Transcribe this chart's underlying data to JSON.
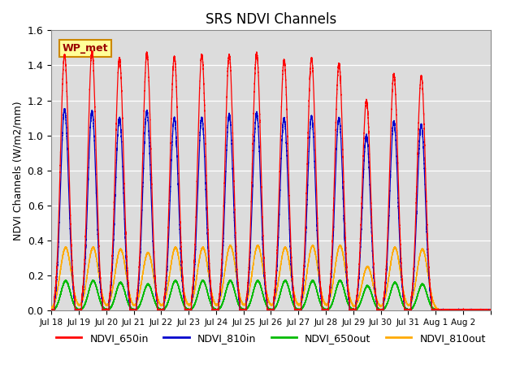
{
  "title": "SRS NDVI Channels",
  "ylabel": "NDVI Channels (W/m2/mm)",
  "xlabel": "",
  "ylim": [
    0.0,
    1.6
  ],
  "background_color": "#dcdcdc",
  "legend_entries": [
    "NDVI_650in",
    "NDVI_810in",
    "NDVI_650out",
    "NDVI_810out"
  ],
  "legend_colors": [
    "#ff0000",
    "#0000cc",
    "#00bb00",
    "#ffaa00"
  ],
  "annotation_text": "WP_met",
  "annotation_bg": "#ffff99",
  "annotation_border": "#cc8800",
  "x_tick_labels": [
    "Jul 18",
    "Jul 19",
    "Jul 20",
    "Jul 21",
    "Jul 22",
    "Jul 23",
    "Jul 24",
    "Jul 25",
    "Jul 26",
    "Jul 27",
    "Jul 28",
    "Jul 29",
    "Jul 30",
    "Jul 31",
    "Aug 1",
    "Aug 2"
  ],
  "num_days": 16,
  "peak_650in": [
    1.46,
    1.48,
    1.44,
    1.47,
    1.45,
    1.46,
    1.46,
    1.47,
    1.43,
    1.44,
    1.41,
    1.2,
    1.35,
    1.34,
    0.0,
    0.0
  ],
  "peak_810in": [
    1.15,
    1.14,
    1.1,
    1.14,
    1.1,
    1.1,
    1.12,
    1.13,
    1.1,
    1.11,
    1.1,
    1.0,
    1.08,
    1.06,
    0.0,
    0.0
  ],
  "peak_650out": [
    0.17,
    0.17,
    0.16,
    0.15,
    0.17,
    0.17,
    0.17,
    0.17,
    0.17,
    0.17,
    0.17,
    0.14,
    0.16,
    0.15,
    0.0,
    0.0
  ],
  "peak_810out": [
    0.36,
    0.36,
    0.35,
    0.33,
    0.36,
    0.36,
    0.37,
    0.37,
    0.36,
    0.37,
    0.37,
    0.25,
    0.36,
    0.35,
    0.0,
    0.0
  ],
  "samples_per_day": 1440
}
